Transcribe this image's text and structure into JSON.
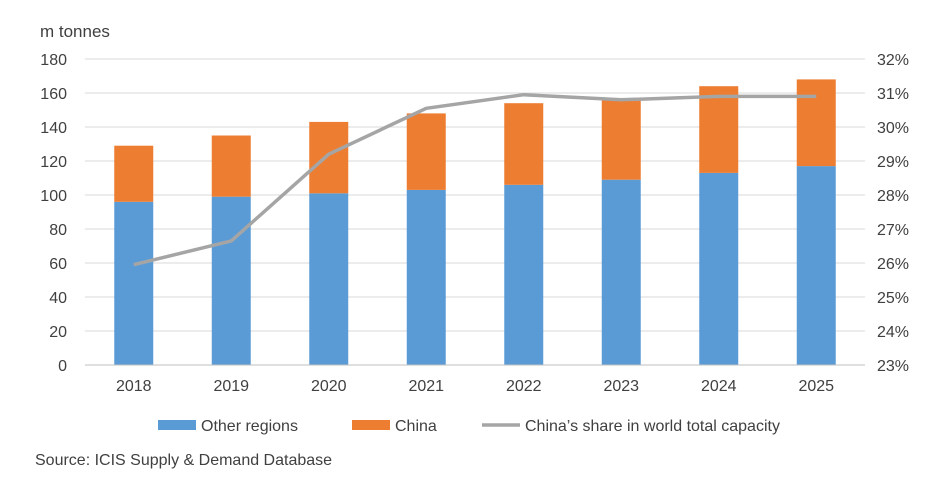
{
  "chart_data": {
    "type": "bar",
    "stacked": true,
    "unit_label": "m tonnes",
    "categories": [
      "2018",
      "2019",
      "2020",
      "2021",
      "2022",
      "2023",
      "2024",
      "2025"
    ],
    "series": [
      {
        "name": "Other regions",
        "type": "bar",
        "axis": "left",
        "color": "#5B9BD5",
        "values": [
          96,
          99,
          101,
          103,
          106,
          109,
          113,
          117
        ]
      },
      {
        "name": "China",
        "type": "bar",
        "axis": "left",
        "color": "#ED7D31",
        "values": [
          33,
          36,
          42,
          45,
          48,
          47,
          51,
          51
        ]
      },
      {
        "name": "China’s share in world total capacity",
        "type": "line",
        "axis": "right",
        "color": "#A5A5A5",
        "values": [
          25.95,
          26.65,
          29.2,
          30.55,
          30.95,
          30.8,
          30.9,
          30.9
        ]
      }
    ],
    "y_left": {
      "min": 0,
      "max": 180,
      "ticks": [
        "0",
        "20",
        "40",
        "60",
        "80",
        "100",
        "120",
        "140",
        "160",
        "180"
      ]
    },
    "y_right": {
      "min": 23,
      "max": 32,
      "ticks": [
        "23%",
        "24%",
        "25%",
        "26%",
        "27%",
        "28%",
        "29%",
        "30%",
        "31%",
        "32%"
      ]
    },
    "grid": true,
    "legend_position": "bottom",
    "source": "Source: ICIS Supply & Demand Database"
  }
}
